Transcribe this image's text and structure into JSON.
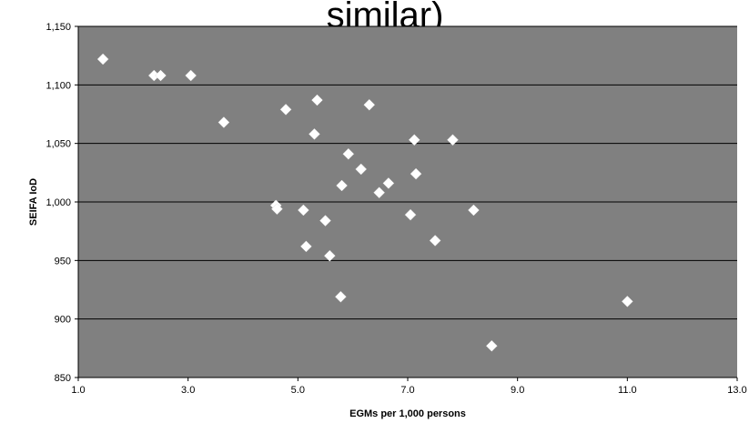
{
  "chart_data": {
    "type": "scatter",
    "title_fragment": "similar)",
    "xlabel": "EGMs per 1,000 persons",
    "ylabel": "SEIFA IoD",
    "xlim": [
      1.0,
      13.0
    ],
    "ylim": [
      850,
      1150
    ],
    "x_ticks": [
      "1.0",
      "3.0",
      "5.0",
      "7.0",
      "9.0",
      "11.0",
      "13.0"
    ],
    "y_ticks": [
      "850",
      "900",
      "950",
      "1,000",
      "1,050",
      "1,100",
      "1,150"
    ],
    "grid": "horizontal",
    "marker": "diamond",
    "colors": {
      "plot_background": "#808080",
      "marker": "#ffffff",
      "gridline": "#000000"
    },
    "points": [
      {
        "x": 1.45,
        "y": 1122
      },
      {
        "x": 2.38,
        "y": 1108
      },
      {
        "x": 2.5,
        "y": 1108
      },
      {
        "x": 3.05,
        "y": 1108
      },
      {
        "x": 3.65,
        "y": 1068
      },
      {
        "x": 4.6,
        "y": 997
      },
      {
        "x": 4.62,
        "y": 994
      },
      {
        "x": 4.78,
        "y": 1079
      },
      {
        "x": 5.1,
        "y": 993
      },
      {
        "x": 5.15,
        "y": 962
      },
      {
        "x": 5.3,
        "y": 1058
      },
      {
        "x": 5.35,
        "y": 1087
      },
      {
        "x": 5.5,
        "y": 984
      },
      {
        "x": 5.58,
        "y": 954
      },
      {
        "x": 5.78,
        "y": 919
      },
      {
        "x": 5.8,
        "y": 1014
      },
      {
        "x": 5.92,
        "y": 1041
      },
      {
        "x": 6.15,
        "y": 1028
      },
      {
        "x": 6.3,
        "y": 1083
      },
      {
        "x": 6.48,
        "y": 1008
      },
      {
        "x": 6.65,
        "y": 1016
      },
      {
        "x": 7.05,
        "y": 989
      },
      {
        "x": 7.12,
        "y": 1053
      },
      {
        "x": 7.15,
        "y": 1024
      },
      {
        "x": 7.5,
        "y": 967
      },
      {
        "x": 7.82,
        "y": 1053
      },
      {
        "x": 8.2,
        "y": 993
      },
      {
        "x": 8.53,
        "y": 877
      },
      {
        "x": 11.0,
        "y": 915
      }
    ]
  }
}
